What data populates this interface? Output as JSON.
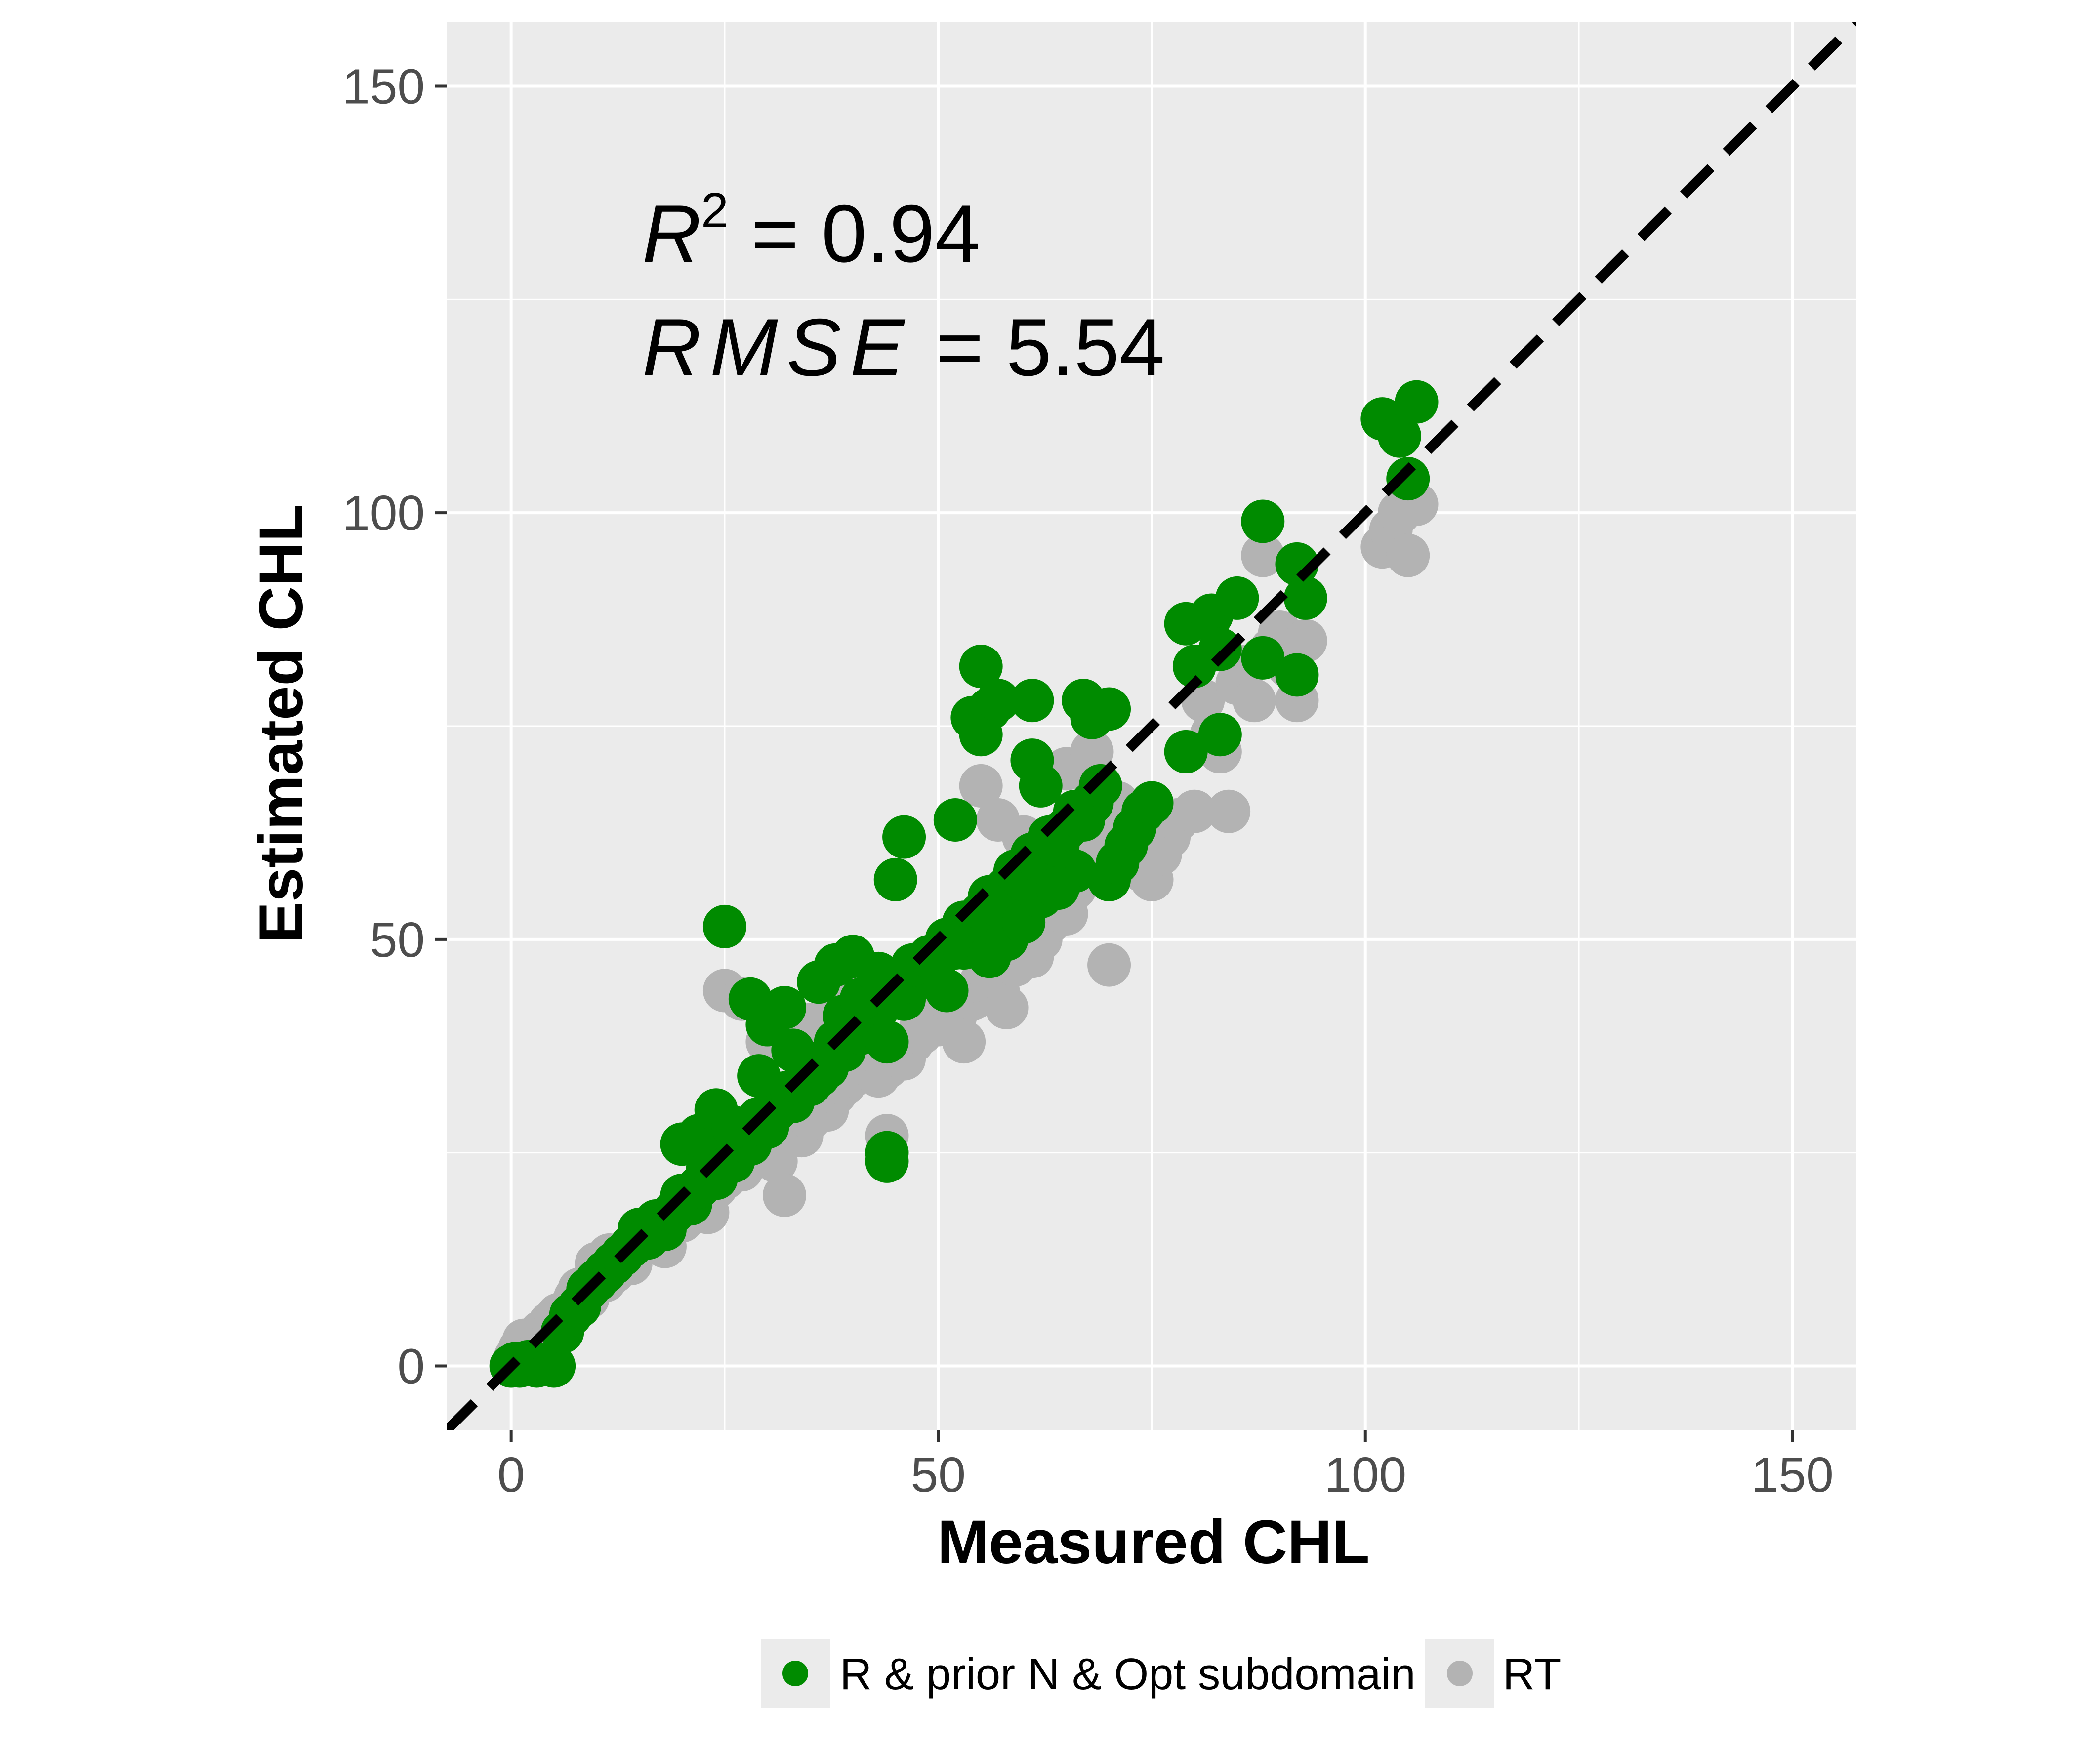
{
  "chart_data": {
    "type": "scatter",
    "xlabel": "Measured CHL",
    "ylabel": "Estimated CHL",
    "xlim": [
      -7.5,
      157.5
    ],
    "ylim": [
      -7.5,
      157.5
    ],
    "x_ticks": [
      "0",
      "50",
      "100",
      "150"
    ],
    "y_ticks": [
      "0",
      "50",
      "100",
      "150"
    ],
    "grid": true,
    "legend_position": "bottom",
    "reference_line": {
      "type": "1:1",
      "style": "dashed",
      "color": "#000000"
    },
    "annotations": {
      "r2": {
        "label": "R",
        "sup": "2",
        "eq": " = ",
        "value": "0.94"
      },
      "rmse": {
        "label": "RMSE",
        "eq": " = ",
        "value": "5.54"
      }
    },
    "series": [
      {
        "name": "RT",
        "color": "#b3b3b3",
        "points": [
          [
            0,
            0
          ],
          [
            0.5,
            1
          ],
          [
            1,
            2
          ],
          [
            1.5,
            3
          ],
          [
            2,
            0.5
          ],
          [
            2.5,
            1.5
          ],
          [
            3,
            2.5
          ],
          [
            3.5,
            4
          ],
          [
            4,
            3
          ],
          [
            4.5,
            5
          ],
          [
            5,
            4.5
          ],
          [
            5.5,
            6
          ],
          [
            6,
            5
          ],
          [
            7,
            7
          ],
          [
            7.5,
            8
          ],
          [
            8,
            9
          ],
          [
            9,
            8
          ],
          [
            9.5,
            10
          ],
          [
            10,
            12
          ],
          [
            11,
            10
          ],
          [
            11.5,
            13
          ],
          [
            12,
            11
          ],
          [
            13,
            13
          ],
          [
            14,
            12
          ],
          [
            15,
            14
          ],
          [
            16,
            15
          ],
          [
            17,
            16
          ],
          [
            18,
            14
          ],
          [
            19,
            18
          ],
          [
            20,
            17
          ],
          [
            21,
            19
          ],
          [
            22,
            20
          ],
          [
            23,
            18
          ],
          [
            24,
            21
          ],
          [
            25,
            22
          ],
          [
            26,
            24
          ],
          [
            27,
            23
          ],
          [
            28,
            25
          ],
          [
            29,
            26
          ],
          [
            30,
            27
          ],
          [
            31,
            24
          ],
          [
            32,
            20
          ],
          [
            33,
            28
          ],
          [
            34,
            27
          ],
          [
            35,
            29
          ],
          [
            36,
            31
          ],
          [
            37,
            30
          ],
          [
            38,
            32
          ],
          [
            39,
            33
          ],
          [
            40,
            34
          ],
          [
            41,
            35
          ],
          [
            42,
            36
          ],
          [
            43,
            34
          ],
          [
            44,
            35
          ],
          [
            44,
            27
          ],
          [
            45,
            37
          ],
          [
            46,
            36
          ],
          [
            47,
            38
          ],
          [
            48,
            40
          ],
          [
            49,
            41
          ],
          [
            50,
            40
          ],
          [
            51,
            42
          ],
          [
            52,
            41
          ],
          [
            53,
            38
          ],
          [
            54,
            43
          ],
          [
            55,
            45
          ],
          [
            56,
            46
          ],
          [
            57,
            44
          ],
          [
            58,
            42
          ],
          [
            59,
            47
          ],
          [
            60,
            49
          ],
          [
            61,
            48
          ],
          [
            62,
            50
          ],
          [
            63,
            52
          ],
          [
            64,
            54
          ],
          [
            65,
            53
          ],
          [
            66,
            56
          ],
          [
            67,
            58
          ],
          [
            68,
            60
          ],
          [
            69,
            62
          ],
          [
            70,
            64
          ],
          [
            70,
            47
          ],
          [
            71,
            66
          ],
          [
            72,
            62
          ],
          [
            73,
            59
          ],
          [
            74,
            58
          ],
          [
            75,
            57
          ],
          [
            76,
            60
          ],
          [
            77,
            62
          ],
          [
            78,
            64
          ],
          [
            80,
            65
          ],
          [
            81,
            78
          ],
          [
            82,
            74
          ],
          [
            83,
            72
          ],
          [
            84,
            65
          ],
          [
            85,
            80
          ],
          [
            86,
            82
          ],
          [
            87,
            78
          ],
          [
            88,
            95
          ],
          [
            89,
            84
          ],
          [
            90,
            86
          ],
          [
            91,
            82
          ],
          [
            92,
            78
          ],
          [
            93,
            85
          ],
          [
            55,
            68
          ],
          [
            57,
            64
          ],
          [
            60,
            62
          ],
          [
            25,
            44
          ],
          [
            27,
            43
          ],
          [
            102,
            96
          ],
          [
            103,
            98
          ],
          [
            104,
            100
          ],
          [
            105,
            95
          ],
          [
            106,
            101
          ],
          [
            65,
            70
          ],
          [
            68,
            72
          ],
          [
            30,
            38
          ],
          [
            35,
            40
          ],
          [
            38,
            42
          ],
          [
            40,
            44
          ],
          [
            42,
            39
          ],
          [
            46,
            45
          ],
          [
            48,
            39
          ],
          [
            50,
            44
          ]
        ]
      },
      {
        "name": "R & prior N & Opt subdomain",
        "color": "#008b00",
        "points": [
          [
            0,
            0
          ],
          [
            0.5,
            0.3
          ],
          [
            1,
            0
          ],
          [
            2,
            0.5
          ],
          [
            3,
            0
          ],
          [
            4,
            0.2
          ],
          [
            5,
            0
          ],
          [
            6,
            4
          ],
          [
            7,
            6
          ],
          [
            8,
            7
          ],
          [
            9,
            9
          ],
          [
            10,
            10
          ],
          [
            11,
            11
          ],
          [
            12,
            12
          ],
          [
            13,
            13
          ],
          [
            14,
            14
          ],
          [
            15,
            16
          ],
          [
            16,
            15
          ],
          [
            17,
            17
          ],
          [
            18,
            16
          ],
          [
            19,
            18
          ],
          [
            20,
            20
          ],
          [
            21,
            19
          ],
          [
            22,
            21
          ],
          [
            23,
            23
          ],
          [
            24,
            22
          ],
          [
            25,
            25
          ],
          [
            26,
            24
          ],
          [
            27,
            27
          ],
          [
            28,
            26
          ],
          [
            29,
            29
          ],
          [
            30,
            28
          ],
          [
            31,
            30
          ],
          [
            32,
            32
          ],
          [
            33,
            31
          ],
          [
            34,
            33
          ],
          [
            35,
            35
          ],
          [
            36,
            34
          ],
          [
            37,
            36
          ],
          [
            38,
            38
          ],
          [
            39,
            37
          ],
          [
            40,
            40
          ],
          [
            41,
            39
          ],
          [
            42,
            41
          ],
          [
            43,
            42
          ],
          [
            44,
            38
          ],
          [
            45,
            44
          ],
          [
            46,
            43
          ],
          [
            47,
            45
          ],
          [
            48,
            47
          ],
          [
            49,
            46
          ],
          [
            50,
            48
          ],
          [
            51,
            50
          ],
          [
            52,
            49
          ],
          [
            53,
            52
          ],
          [
            54,
            51
          ],
          [
            55,
            53
          ],
          [
            56,
            55
          ],
          [
            57,
            54
          ],
          [
            58,
            56
          ],
          [
            59,
            58
          ],
          [
            60,
            57
          ],
          [
            61,
            60
          ],
          [
            62,
            59
          ],
          [
            63,
            62
          ],
          [
            64,
            61
          ],
          [
            65,
            63
          ],
          [
            66,
            65
          ],
          [
            67,
            64
          ],
          [
            68,
            66
          ],
          [
            69,
            68
          ],
          [
            70,
            57
          ],
          [
            71,
            59
          ],
          [
            72,
            61
          ],
          [
            73,
            63
          ],
          [
            74,
            65
          ],
          [
            75,
            66
          ],
          [
            25,
            51.5
          ],
          [
            28,
            43
          ],
          [
            44,
            25
          ],
          [
            44,
            24
          ],
          [
            46,
            62
          ],
          [
            45,
            57
          ],
          [
            52,
            64
          ],
          [
            55,
            82
          ],
          [
            54,
            76
          ],
          [
            56,
            77
          ],
          [
            55,
            74
          ],
          [
            57,
            78
          ],
          [
            61,
            78
          ],
          [
            61,
            71
          ],
          [
            62,
            68
          ],
          [
            67,
            78
          ],
          [
            68,
            76
          ],
          [
            70,
            77
          ],
          [
            79,
            87
          ],
          [
            80,
            82
          ],
          [
            82,
            88
          ],
          [
            83,
            84
          ],
          [
            85,
            90
          ],
          [
            79,
            72
          ],
          [
            83,
            74
          ],
          [
            88,
            83
          ],
          [
            88,
            99
          ],
          [
            92,
            81
          ],
          [
            92,
            94
          ],
          [
            93,
            90
          ],
          [
            102,
            111
          ],
          [
            104,
            109
          ],
          [
            106,
            113
          ],
          [
            105,
            104
          ],
          [
            20,
            26
          ],
          [
            22,
            27
          ],
          [
            24,
            30
          ],
          [
            26,
            28
          ],
          [
            30,
            40
          ],
          [
            32,
            42
          ],
          [
            36,
            45
          ],
          [
            38,
            47
          ],
          [
            40,
            48
          ],
          [
            29,
            34
          ],
          [
            33,
            37
          ],
          [
            35,
            33
          ],
          [
            37,
            35
          ],
          [
            39,
            41
          ],
          [
            41,
            43
          ],
          [
            43,
            46
          ],
          [
            47,
            47
          ],
          [
            49,
            48
          ],
          [
            51,
            44
          ],
          [
            53,
            49
          ],
          [
            56,
            48
          ],
          [
            58,
            50
          ],
          [
            60,
            52
          ],
          [
            62,
            55
          ],
          [
            66,
            58
          ],
          [
            64,
            56
          ]
        ]
      }
    ]
  }
}
